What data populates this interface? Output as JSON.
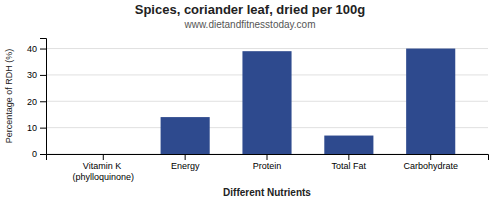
{
  "chart_data": {
    "type": "bar",
    "title": "Spices, coriander leaf, dried per 100g",
    "subtitle": "www.dietandfitnesstoday.com",
    "xlabel": "Different Nutrients",
    "ylabel": "Percentage of RDH (%)",
    "categories": [
      "Vitamin K (phylloquinone)",
      "Energy",
      "Protein",
      "Total Fat",
      "Carbohydrate"
    ],
    "values": [
      0,
      14,
      39,
      7,
      40
    ],
    "color": "#2E4A8E",
    "ylim": [
      0,
      44
    ],
    "yticks": [
      0,
      10,
      20,
      30,
      40
    ],
    "grid": true
  }
}
